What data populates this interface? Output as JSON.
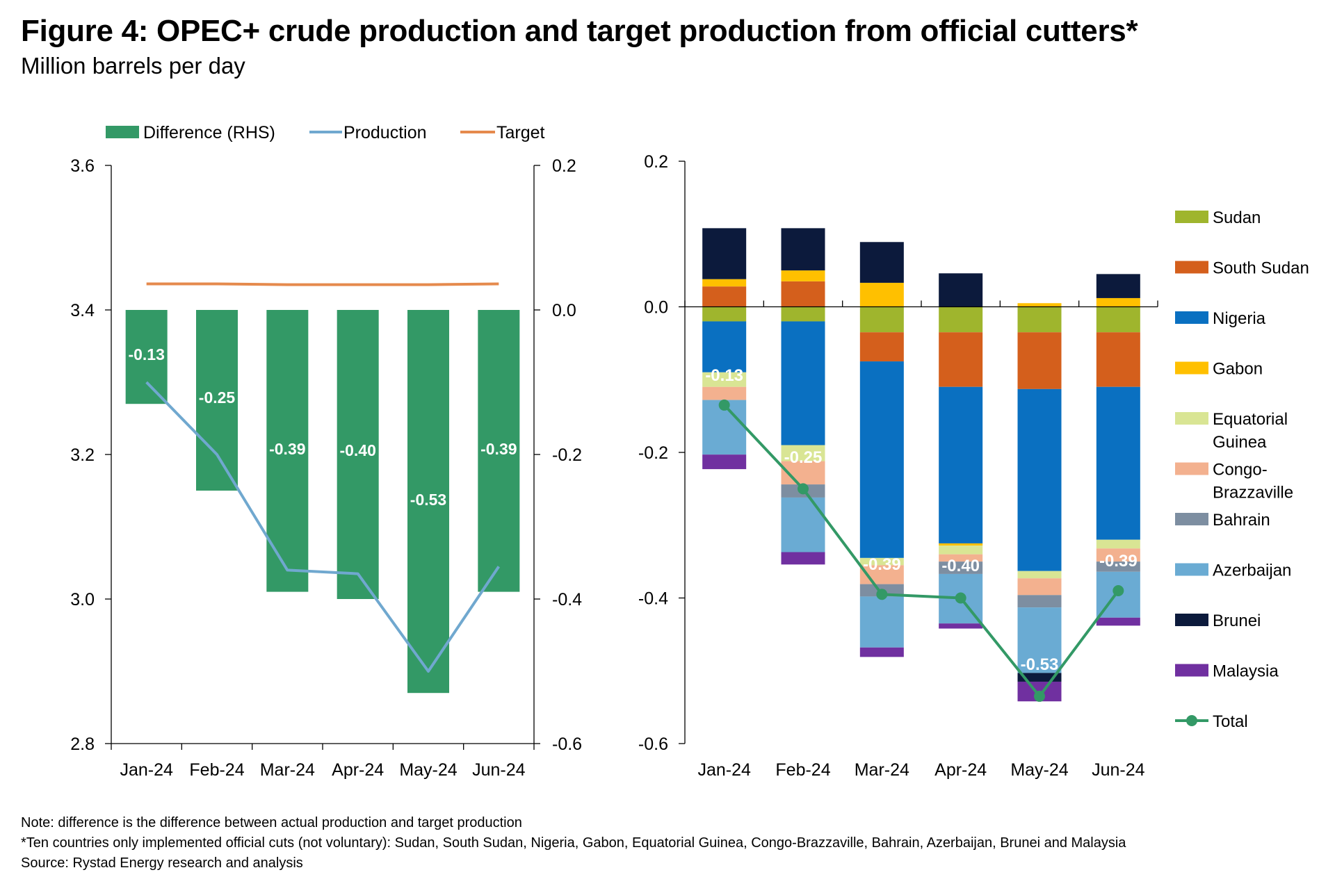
{
  "title": "Figure 4: OPEC+ crude production and target production from official cutters*",
  "subtitle": "Million barrels per day",
  "notes": [
    "Note: difference is the difference between actual production and target production",
    "*Ten countries only implemented official cuts (not voluntary): Sudan, South Sudan, Nigeria, Gabon, Equatorial Guinea, Congo-Brazzaville, Bahrain, Azerbaijan, Brunei and Malaysia",
    "Source: Rystad Energy research and analysis"
  ],
  "chart_data": [
    {
      "type": "bar",
      "categories": [
        "Jan-24",
        "Feb-24",
        "Mar-24",
        "Apr-24",
        "May-24",
        "Jun-24"
      ],
      "legend": {
        "position": "top",
        "entries": [
          "Difference (RHS)",
          "Production",
          "Target"
        ]
      },
      "y_left": {
        "ylim": [
          2.8,
          3.6
        ],
        "ticks": [
          "2.8",
          "3.0",
          "3.2",
          "3.4",
          "3.6"
        ]
      },
      "y_right": {
        "ylim": [
          -0.6,
          0.2
        ],
        "ticks": [
          "-0.6",
          "-0.4",
          "-0.2",
          "0.0",
          "0.2"
        ]
      },
      "grid": false,
      "series": [
        {
          "name": "Difference (RHS)",
          "type": "bar",
          "axis": "right",
          "color": "#339966",
          "values": [
            -0.13,
            -0.25,
            -0.39,
            -0.4,
            -0.53,
            -0.39
          ],
          "labels": [
            "-0.13",
            "-0.25",
            "-0.39",
            "-0.40",
            "-0.53",
            "-0.39"
          ]
        },
        {
          "name": "Production",
          "type": "line",
          "axis": "left",
          "color": "#70a8cf",
          "values": [
            3.3,
            3.2,
            3.04,
            3.035,
            2.9,
            3.045
          ]
        },
        {
          "name": "Target",
          "type": "line",
          "axis": "left",
          "color": "#e58a4d",
          "values": [
            3.436,
            3.436,
            3.435,
            3.435,
            3.435,
            3.436
          ]
        }
      ]
    },
    {
      "type": "bar",
      "stacked": true,
      "categories": [
        "Jan-24",
        "Feb-24",
        "Mar-24",
        "Apr-24",
        "May-24",
        "Jun-24"
      ],
      "ylim": [
        -0.6,
        0.2
      ],
      "yticks": [
        "-0.6",
        "-0.4",
        "-0.2",
        "0.0",
        "0.2"
      ],
      "grid": false,
      "legend": {
        "position": "right"
      },
      "series": [
        {
          "name": "Sudan",
          "color": "#9fb52d",
          "values": [
            -0.02,
            -0.02,
            -0.035,
            -0.035,
            -0.035,
            -0.035
          ]
        },
        {
          "name": "South Sudan",
          "color": "#d45f1c",
          "values": [
            0.028,
            0.035,
            -0.04,
            -0.075,
            -0.078,
            -0.075
          ]
        },
        {
          "name": "Nigeria",
          "color": "#0a70c1",
          "values": [
            -0.07,
            -0.17,
            -0.27,
            -0.215,
            -0.25,
            -0.21
          ]
        },
        {
          "name": "Gabon",
          "color": "#ffc000",
          "values": [
            0.01,
            0.015,
            0.033,
            -0.003,
            0.005,
            0.012
          ]
        },
        {
          "name": "Equatorial Guinea",
          "color": "#d9e594",
          "values": [
            -0.02,
            -0.022,
            -0.01,
            -0.012,
            -0.01,
            -0.012
          ]
        },
        {
          "name": "Congo-Brazzaville",
          "color": "#f3b18f",
          "values": [
            -0.018,
            -0.032,
            -0.026,
            -0.01,
            -0.023,
            -0.018
          ]
        },
        {
          "name": "Bahrain",
          "color": "#7d8ea1",
          "values": [
            0.0,
            -0.018,
            -0.017,
            -0.017,
            -0.017,
            -0.014
          ]
        },
        {
          "name": "Azerbaijan",
          "color": "#6aabd3",
          "values": [
            -0.075,
            -0.075,
            -0.07,
            -0.068,
            -0.09,
            -0.063
          ]
        },
        {
          "name": "Brunei",
          "color": "#0c1a3c",
          "values": [
            0.07,
            0.058,
            0.056,
            0.046,
            -0.012,
            0.033
          ]
        },
        {
          "name": "Malaysia",
          "color": "#7030a0",
          "values": [
            -0.02,
            -0.017,
            -0.013,
            -0.007,
            -0.027,
            -0.011
          ]
        },
        {
          "name": "Total",
          "type": "line",
          "color": "#339966",
          "values": [
            -0.135,
            -0.25,
            -0.395,
            -0.4,
            -0.535,
            -0.39
          ],
          "labels": [
            "-0.13",
            "-0.25",
            "-0.39",
            "-0.40",
            "-0.53",
            "-0.39"
          ]
        }
      ],
      "legend_labels": [
        "Sudan",
        "South Sudan",
        "Nigeria",
        "Gabon",
        "Equatorial Guinea",
        "Congo-Brazzaville",
        "Bahrain",
        "Azerbaijan",
        "Brunei",
        "Malaysia",
        "Total"
      ],
      "legend_lines": [
        [
          "Sudan"
        ],
        [
          "South Sudan"
        ],
        [
          "Nigeria"
        ],
        [
          "Gabon"
        ],
        [
          "Equatorial",
          "Guinea"
        ],
        [
          "Congo-",
          "Brazzaville"
        ],
        [
          "Bahrain"
        ],
        [
          "Azerbaijan"
        ],
        [
          "Brunei"
        ],
        [
          "Malaysia"
        ],
        [
          "Total"
        ]
      ]
    }
  ]
}
